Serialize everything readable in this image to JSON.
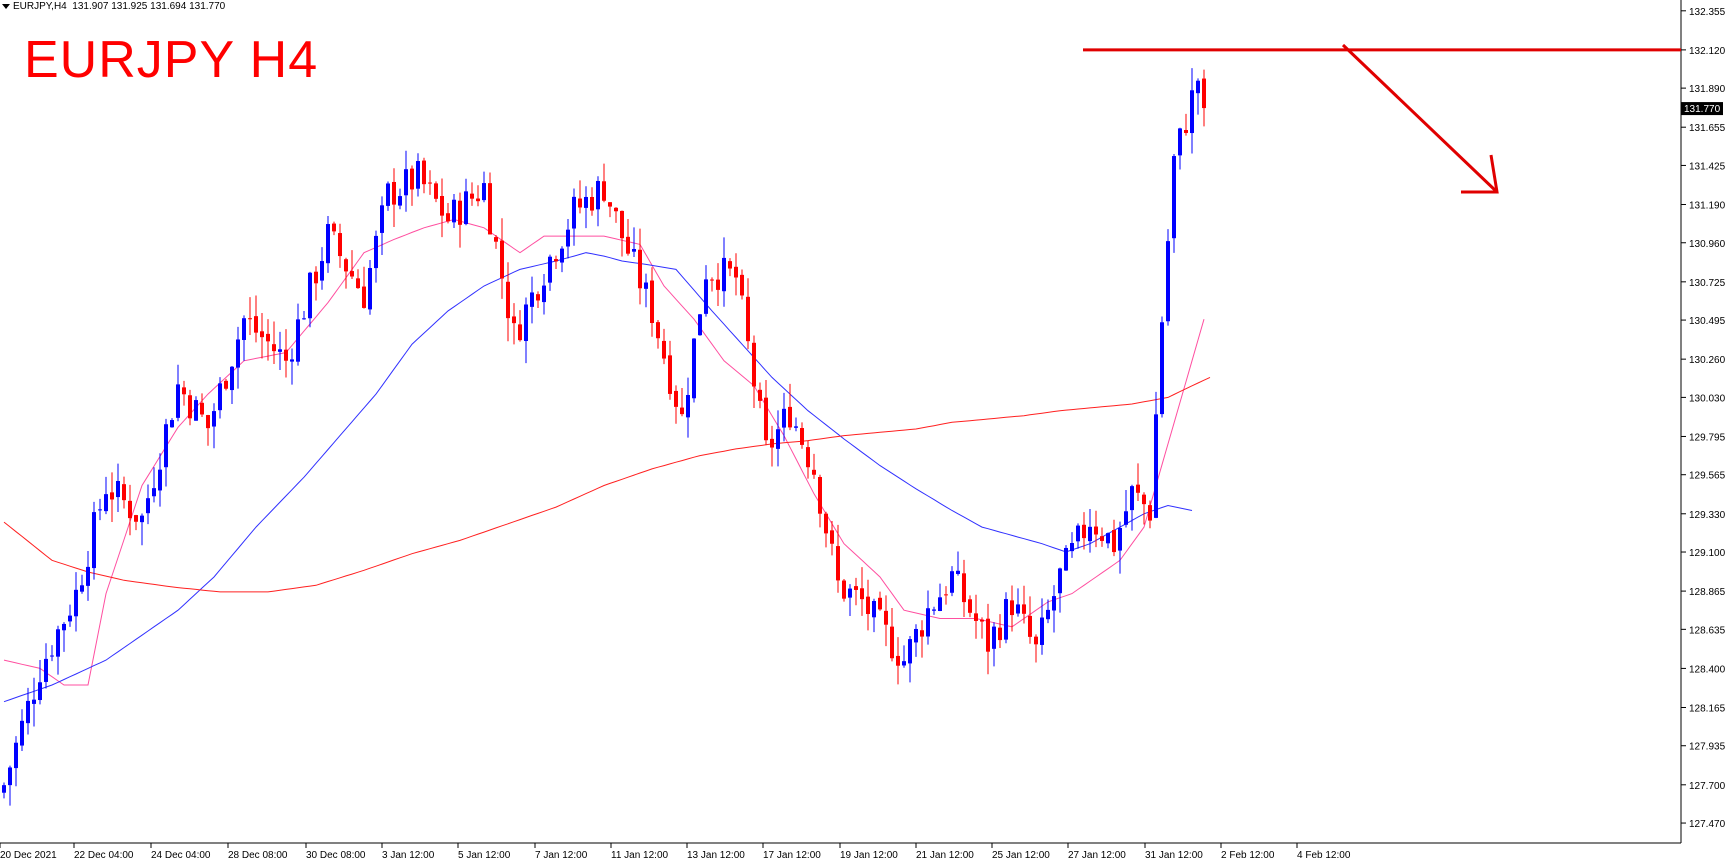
{
  "header": {
    "symbol_timeframe": "EURJPY,H4",
    "ohlc": "131.907 131.925 131.694 131.770"
  },
  "title": "EURJPY H4",
  "colors": {
    "bull": "#0000ff",
    "bear": "#ff0000",
    "ma_fast": "#ff4fa0",
    "ma_mid": "#3030ff",
    "ma_slow": "#ff2020",
    "annotation": "#e00000",
    "axis": "#000000"
  },
  "chart_data": {
    "type": "candlestick",
    "symbol": "EURJPY",
    "timeframe": "H4",
    "ylim": [
      127.35,
      132.42
    ],
    "y_ticks": [
      "132.355",
      "132.120",
      "131.890",
      "131.655",
      "131.425",
      "131.190",
      "130.960",
      "130.725",
      "130.495",
      "130.260",
      "130.030",
      "129.795",
      "129.565",
      "129.330",
      "129.100",
      "128.865",
      "128.635",
      "128.400",
      "128.165",
      "127.935",
      "127.700",
      "127.470"
    ],
    "x_ticks": [
      "20 Dec 2021",
      "22 Dec 04:00",
      "24 Dec 04:00",
      "28 Dec 08:00",
      "30 Dec 08:00",
      "3 Jan 12:00",
      "5 Jan 12:00",
      "7 Jan 12:00",
      "11 Jan 12:00",
      "13 Jan 12:00",
      "17 Jan 12:00",
      "19 Jan 12:00",
      "21 Jan 12:00",
      "25 Jan 12:00",
      "27 Jan 12:00",
      "31 Jan 12:00",
      "2 Feb 12:00",
      "4 Feb 12:00"
    ],
    "last_price": "131.770",
    "close_path": [
      [
        0,
        127.7
      ],
      [
        6,
        128.4
      ],
      [
        12,
        128.85
      ],
      [
        17,
        129.5
      ],
      [
        23,
        129.3
      ],
      [
        29,
        130.1
      ],
      [
        34,
        129.85
      ],
      [
        40,
        130.5
      ],
      [
        47,
        130.25
      ],
      [
        54,
        131.0
      ],
      [
        60,
        130.65
      ],
      [
        64,
        131.25
      ],
      [
        69,
        131.35
      ],
      [
        74,
        131.1
      ],
      [
        80,
        131.3
      ],
      [
        85,
        130.4
      ],
      [
        90,
        130.8
      ],
      [
        95,
        131.15
      ],
      [
        100,
        131.3
      ],
      [
        103,
        131.0
      ],
      [
        108,
        130.55
      ],
      [
        113,
        129.9
      ],
      [
        117,
        130.8
      ],
      [
        122,
        130.75
      ],
      [
        127,
        129.7
      ],
      [
        131,
        129.95
      ],
      [
        135,
        129.6
      ],
      [
        139,
        128.9
      ],
      [
        143,
        128.8
      ],
      [
        150,
        128.45
      ],
      [
        154,
        128.75
      ],
      [
        158,
        128.95
      ],
      [
        164,
        128.55
      ],
      [
        168,
        128.8
      ],
      [
        172,
        128.5
      ],
      [
        176,
        128.95
      ],
      [
        181,
        129.3
      ],
      [
        185,
        129.15
      ],
      [
        188,
        129.45
      ],
      [
        191,
        129.35
      ],
      [
        193,
        130.5
      ],
      [
        195,
        131.45
      ],
      [
        199,
        131.95
      ],
      [
        200,
        131.77
      ]
    ],
    "ma_fast": [
      [
        0,
        128.45
      ],
      [
        6,
        128.4
      ],
      [
        10,
        128.3
      ],
      [
        14,
        128.3
      ],
      [
        17,
        128.85
      ],
      [
        23,
        129.5
      ],
      [
        29,
        129.85
      ],
      [
        34,
        130.05
      ],
      [
        40,
        130.25
      ],
      [
        47,
        130.3
      ],
      [
        54,
        130.6
      ],
      [
        60,
        130.9
      ],
      [
        65,
        130.98
      ],
      [
        70,
        131.05
      ],
      [
        75,
        131.1
      ],
      [
        80,
        131.05
      ],
      [
        86,
        130.9
      ],
      [
        90,
        131.0
      ],
      [
        96,
        131.0
      ],
      [
        100,
        131.0
      ],
      [
        106,
        130.95
      ],
      [
        110,
        130.7
      ],
      [
        115,
        130.5
      ],
      [
        120,
        130.25
      ],
      [
        125,
        130.1
      ],
      [
        130,
        129.8
      ],
      [
        135,
        129.45
      ],
      [
        140,
        129.15
      ],
      [
        146,
        128.95
      ],
      [
        150,
        128.75
      ],
      [
        156,
        128.7
      ],
      [
        162,
        128.7
      ],
      [
        168,
        128.65
      ],
      [
        174,
        128.8
      ],
      [
        178,
        128.85
      ],
      [
        182,
        128.95
      ],
      [
        186,
        129.05
      ],
      [
        190,
        129.25
      ],
      [
        194,
        129.75
      ],
      [
        198,
        130.25
      ],
      [
        200,
        130.5
      ]
    ],
    "ma_mid": [
      [
        0,
        128.2
      ],
      [
        8,
        128.3
      ],
      [
        17,
        128.45
      ],
      [
        23,
        128.6
      ],
      [
        29,
        128.75
      ],
      [
        35,
        128.95
      ],
      [
        42,
        129.25
      ],
      [
        50,
        129.55
      ],
      [
        56,
        129.8
      ],
      [
        62,
        130.05
      ],
      [
        68,
        130.35
      ],
      [
        74,
        130.55
      ],
      [
        80,
        130.7
      ],
      [
        86,
        130.8
      ],
      [
        92,
        130.85
      ],
      [
        97,
        130.9
      ],
      [
        100,
        130.88
      ],
      [
        103,
        130.85
      ],
      [
        107,
        130.83
      ],
      [
        112,
        130.8
      ],
      [
        118,
        130.55
      ],
      [
        123,
        130.35
      ],
      [
        128,
        130.15
      ],
      [
        134,
        129.95
      ],
      [
        140,
        129.78
      ],
      [
        146,
        129.62
      ],
      [
        152,
        129.48
      ],
      [
        158,
        129.35
      ],
      [
        163,
        129.25
      ],
      [
        168,
        129.2
      ],
      [
        173,
        129.15
      ],
      [
        177,
        129.1
      ],
      [
        181,
        129.15
      ],
      [
        186,
        129.25
      ],
      [
        190,
        129.33
      ],
      [
        194,
        129.38
      ],
      [
        198,
        129.35
      ]
    ],
    "ma_slow": [
      [
        0,
        129.28
      ],
      [
        8,
        129.05
      ],
      [
        14,
        128.98
      ],
      [
        20,
        128.93
      ],
      [
        28,
        128.89
      ],
      [
        36,
        128.86
      ],
      [
        44,
        128.86
      ],
      [
        52,
        128.9
      ],
      [
        60,
        128.99
      ],
      [
        68,
        129.09
      ],
      [
        76,
        129.17
      ],
      [
        84,
        129.27
      ],
      [
        92,
        129.37
      ],
      [
        100,
        129.5
      ],
      [
        108,
        129.6
      ],
      [
        116,
        129.68
      ],
      [
        122,
        129.72
      ],
      [
        128,
        129.75
      ],
      [
        134,
        129.77
      ],
      [
        140,
        129.8
      ],
      [
        146,
        129.82
      ],
      [
        152,
        129.84
      ],
      [
        158,
        129.88
      ],
      [
        164,
        129.9
      ],
      [
        170,
        129.92
      ],
      [
        176,
        129.95
      ],
      [
        182,
        129.97
      ],
      [
        188,
        129.99
      ],
      [
        194,
        130.03
      ],
      [
        198,
        130.1
      ],
      [
        201,
        130.15
      ]
    ],
    "annotations": {
      "resistance_level": 132.12,
      "arrow": "downward from resistance"
    }
  }
}
